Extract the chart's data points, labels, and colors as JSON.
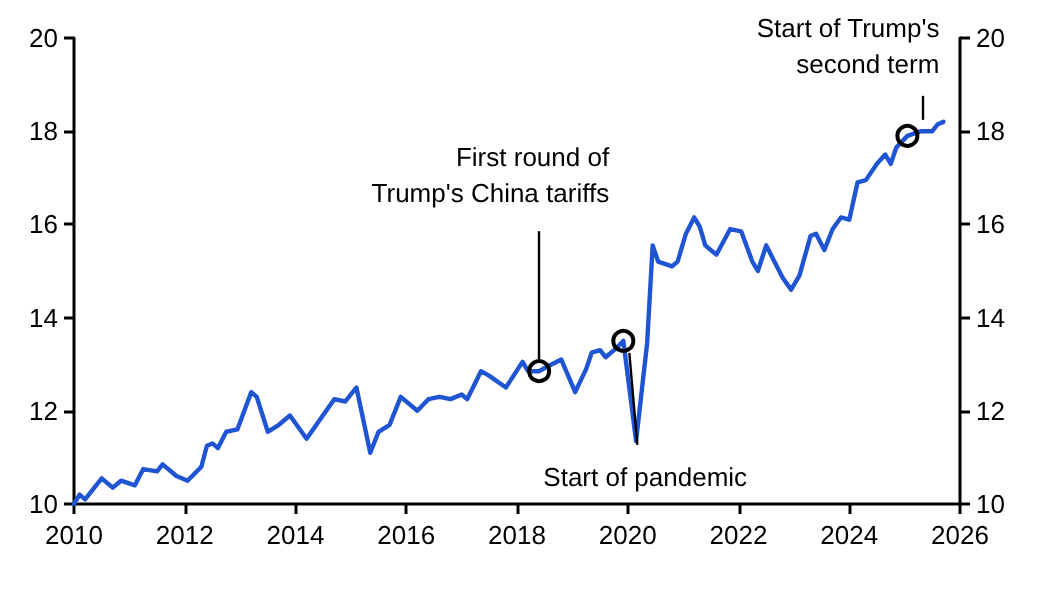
{
  "chart_data": {
    "type": "line",
    "x": [
      2010.0,
      2010.1,
      2010.2,
      2010.5,
      2010.7,
      2010.85,
      2011.1,
      2011.25,
      2011.5,
      2011.6,
      2011.85,
      2012.05,
      2012.3,
      2012.4,
      2012.5,
      2012.6,
      2012.75,
      2012.95,
      2013.2,
      2013.3,
      2013.5,
      2013.7,
      2013.9,
      2014.2,
      2014.7,
      2014.9,
      2015.1,
      2015.35,
      2015.5,
      2015.7,
      2015.9,
      2016.2,
      2016.4,
      2016.6,
      2016.8,
      2017.0,
      2017.1,
      2017.35,
      2017.5,
      2017.8,
      2018.1,
      2018.2,
      2018.4,
      2018.55,
      2018.8,
      2019.05,
      2019.25,
      2019.35,
      2019.5,
      2019.6,
      2019.8,
      2019.92,
      2020.15,
      2020.35,
      2020.45,
      2020.55,
      2020.8,
      2020.9,
      2021.05,
      2021.2,
      2021.3,
      2021.4,
      2021.6,
      2021.85,
      2022.05,
      2022.25,
      2022.35,
      2022.5,
      2022.65,
      2022.8,
      2022.95,
      2023.1,
      2023.3,
      2023.4,
      2023.55,
      2023.7,
      2023.85,
      2024.0,
      2024.15,
      2024.3,
      2024.5,
      2024.65,
      2024.75,
      2024.85,
      2025.05,
      2025.3,
      2025.5,
      2025.6,
      2025.7
    ],
    "series": [
      {
        "color": "#1f55d2",
        "values": [
          10.0,
          10.2,
          10.1,
          10.55,
          10.35,
          10.5,
          10.4,
          10.75,
          10.7,
          10.85,
          10.6,
          10.5,
          10.8,
          11.25,
          11.3,
          11.2,
          11.55,
          11.6,
          12.4,
          12.3,
          11.55,
          11.7,
          11.9,
          11.4,
          12.25,
          12.2,
          12.5,
          11.1,
          11.55,
          11.7,
          12.3,
          12.0,
          12.25,
          12.3,
          12.25,
          12.35,
          12.25,
          12.85,
          12.75,
          12.5,
          13.05,
          12.85,
          12.85,
          12.95,
          13.1,
          12.4,
          12.9,
          13.25,
          13.3,
          13.15,
          13.35,
          13.5,
          11.35,
          13.45,
          15.55,
          15.2,
          15.1,
          15.2,
          15.8,
          16.15,
          15.95,
          15.55,
          15.35,
          15.9,
          15.85,
          15.2,
          15.0,
          15.55,
          15.2,
          14.85,
          14.6,
          14.9,
          15.75,
          15.8,
          15.45,
          15.9,
          16.15,
          16.1,
          16.9,
          16.95,
          17.3,
          17.5,
          17.3,
          17.65,
          17.9,
          18.0,
          18.0,
          18.15,
          18.2
        ]
      }
    ],
    "xlim": [
      2010,
      2026
    ],
    "xticks": [
      2010,
      2012,
      2014,
      2016,
      2018,
      2020,
      2022,
      2024,
      2026
    ],
    "ylim": [
      10,
      20
    ],
    "yticks": [
      10,
      12,
      14,
      16,
      18,
      20
    ],
    "y2lim": [
      10,
      20
    ],
    "y2ticks": [
      10,
      12,
      14,
      16,
      18,
      20
    ],
    "annotations": [
      {
        "text": "First round of\nTrump's China tariffs",
        "x": 2018.4,
        "y": 12.85
      },
      {
        "text": "Start of pandemic",
        "x": 2019.92,
        "y": 13.5
      },
      {
        "text": "Start of Trump's\nsecond term",
        "x": 2025.05,
        "y": 17.9
      }
    ],
    "grid": false,
    "marker": "none",
    "line_style": "solid"
  }
}
